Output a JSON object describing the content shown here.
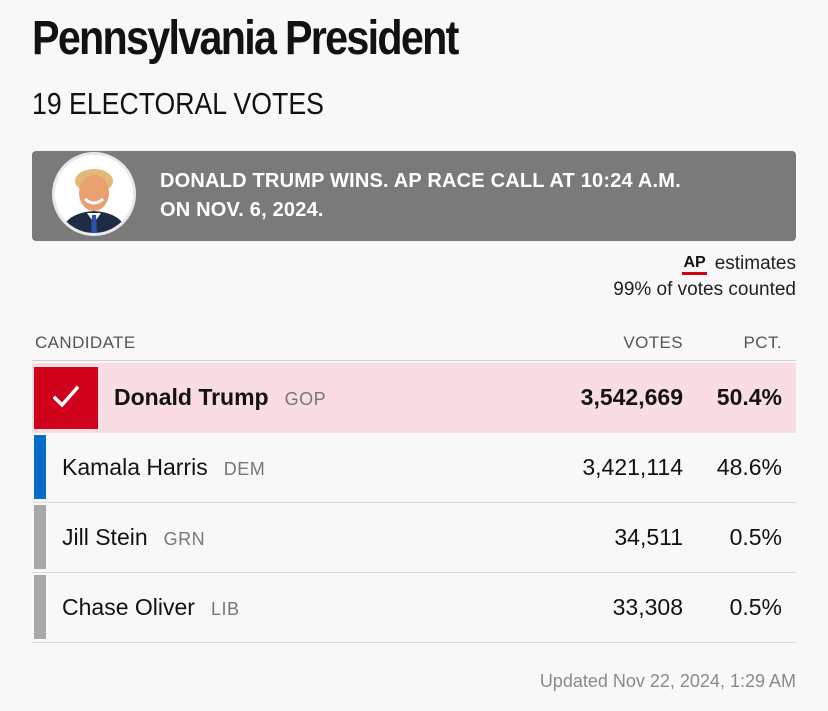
{
  "header": {
    "title": "Pennsylvania President",
    "subtitle": "19 ELECTORAL VOTES"
  },
  "banner": {
    "line1": "DONALD TRUMP WINS. AP RACE CALL AT 10:24 A.M.",
    "line2": "ON NOV. 6, 2024."
  },
  "source": {
    "logo": "AP",
    "label": "estimates",
    "counted": "99% of votes counted"
  },
  "table": {
    "headers": {
      "candidate": "CANDIDATE",
      "votes": "VOTES",
      "pct": "PCT."
    },
    "rows": [
      {
        "name": "Donald Trump",
        "party": "GOP",
        "votes": "3,542,669",
        "pct": "50.4%",
        "winner": true,
        "color": "#d0021b"
      },
      {
        "name": "Kamala Harris",
        "party": "DEM",
        "votes": "3,421,114",
        "pct": "48.6%",
        "winner": false,
        "color": "#0a6cc9"
      },
      {
        "name": "Jill Stein",
        "party": "GRN",
        "votes": "34,511",
        "pct": "0.5%",
        "winner": false,
        "color": "#a8a8a8"
      },
      {
        "name": "Chase Oliver",
        "party": "LIB",
        "votes": "33,308",
        "pct": "0.5%",
        "winner": false,
        "color": "#a8a8a8"
      }
    ]
  },
  "footer": {
    "updated": "Updated Nov 22, 2024, 1:29 AM"
  },
  "icons": {
    "check": "check-icon",
    "avatar": "candidate-photo"
  },
  "colors": {
    "banner_bg": "#7a7a7a",
    "winner_bg": "#fadde2",
    "gop": "#d0021b",
    "dem": "#0a6cc9",
    "other": "#a8a8a8"
  }
}
